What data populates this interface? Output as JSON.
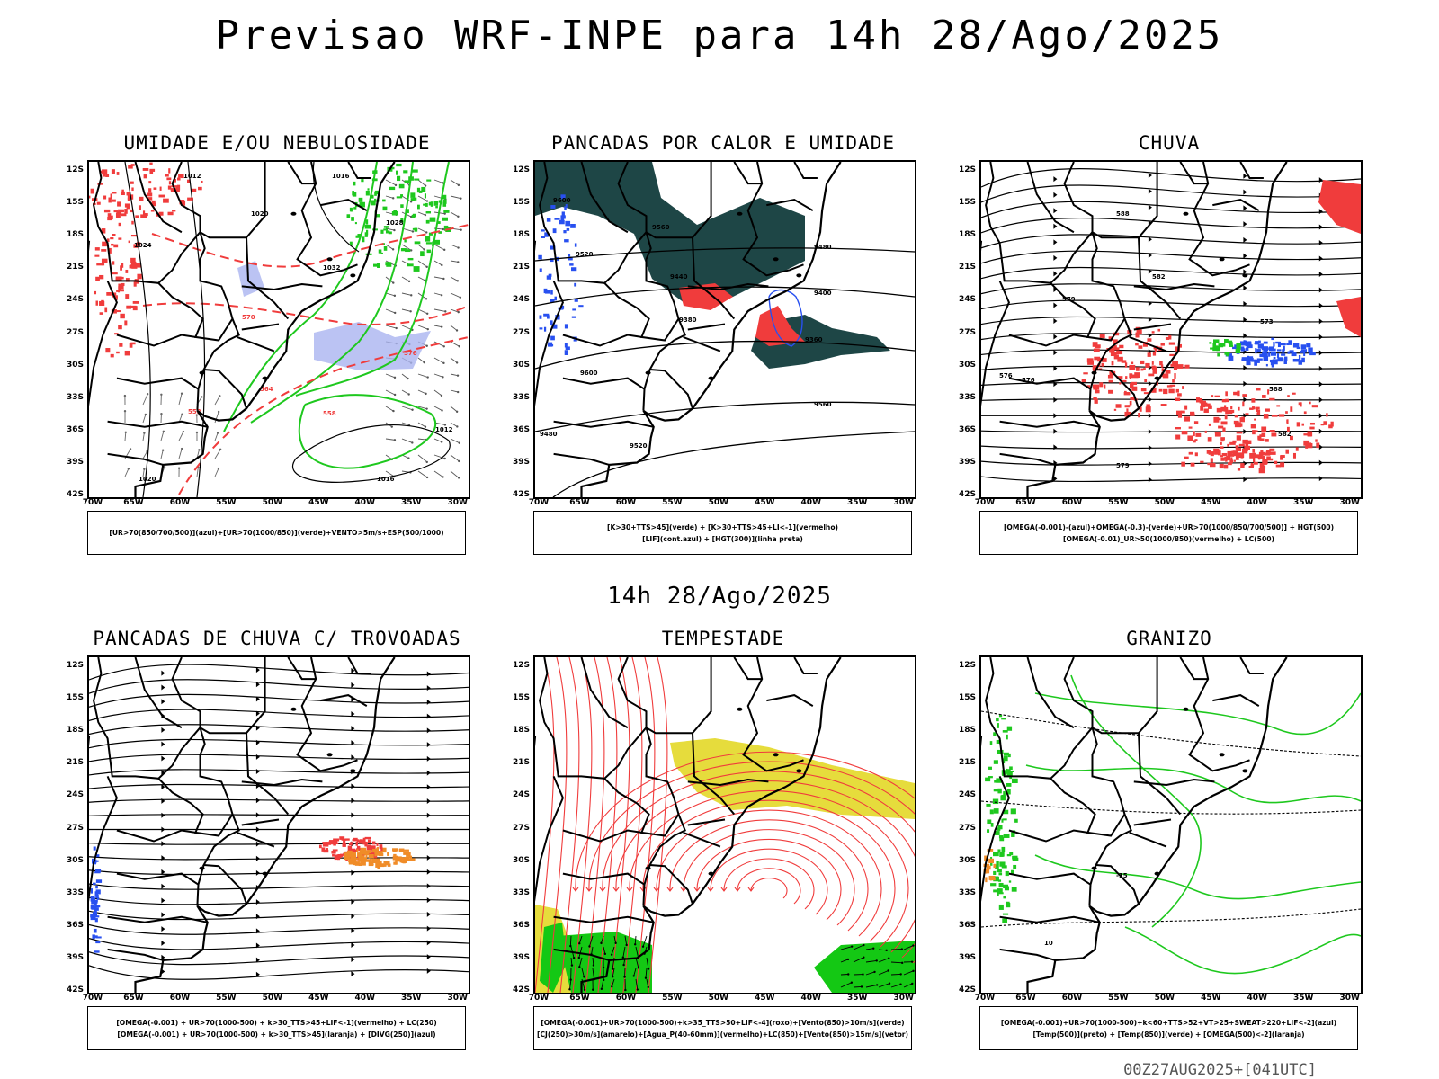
{
  "header": {
    "title": "Previsao WRF-INPE  para 14h 28/Ago/2025",
    "mid_label": "14h 28/Ago/2025",
    "footer": "00Z27AUG2025+[041UTC]"
  },
  "axes": {
    "lat_labels": [
      "12S",
      "15S",
      "18S",
      "21S",
      "24S",
      "27S",
      "30S",
      "33S",
      "36S",
      "39S",
      "42S"
    ],
    "lon_labels": [
      "70W",
      "65W",
      "60W",
      "55W",
      "50W",
      "45W",
      "40W",
      "35W",
      "30W"
    ]
  },
  "panels": [
    {
      "title": "UMIDADE E/OU NEBULOSIDADE",
      "legend": [
        "[UR>70(850/700/500)](azul)+[UR>70(1000/850)](verde)+VENTO>5m/s+ESP(500/1000)"
      ],
      "contour_labels": [
        "1012",
        "1016",
        "1020",
        "1024",
        "1028",
        "1032",
        "570",
        "576",
        "564",
        "552",
        "558"
      ]
    },
    {
      "title": "PANCADAS POR CALOR E UMIDADE",
      "legend": [
        "[K>30+TTS>45](verde)  +  [K>30+TTS>45+LI<-1](vermelho)",
        "[LIF](cont.azul)  +  [HGT(300)](linha preta)"
      ],
      "contour_labels": [
        "9600",
        "9560",
        "9520",
        "9480",
        "9440",
        "9400",
        "9380",
        "9360"
      ]
    },
    {
      "title": "CHUVA",
      "legend": [
        "[OMEGA(-0.001)-(azul)+OMEGA(-0.3)-(verde)+UR>70(1000/850/700/500)]  +  HGT(500)",
        "[OMEGA(-0.01)_UR>50(1000/850)(vermelho)  +  LC(500)"
      ],
      "contour_labels": [
        "588",
        "582",
        "579",
        "576",
        "573"
      ]
    },
    {
      "title": "PANCADAS DE CHUVA C/ TROVOADAS",
      "legend": [
        "[OMEGA(-0.001)  +  UR>70(1000-500)  +  k>30_TTS>45+LIF<-1](vermelho)  +  LC(250)",
        "[OMEGA(-0.001)  +  UR>70(1000-500)  +  k>30_TTS>45](laranja)  +  [DIVG(250)](azul)"
      ]
    },
    {
      "title": "TEMPESTADE",
      "legend": [
        "[OMEGA(-0.001)+UR>70(1000-500)+k>35_TTS>50+LIF<-4](roxo)+[Vento(850)>10m/s](verde)",
        "[CJ(250)>30m/s](amarelo)+[Agua_P(40-60mm)](vermelho)+LC(850)+[Vento(850)>15m/s](vetor)"
      ]
    },
    {
      "title": "GRANIZO",
      "legend": [
        "[OMEGA(-0.001)+UR>70(1000-500)+k<60+TTS>52+VT>25+SWEAT>220+LIF<-2](azul)",
        "[Temp(500)](preto)  +  [Temp(850)](verde)  +  [OMEGA(500)<-2](laranja)"
      ],
      "contour_labels": [
        "-15",
        "10"
      ]
    }
  ],
  "colors": {
    "humidity_blue": "#aab4f0",
    "green": "#1ec81e",
    "red": "#f03c3c",
    "dark_teal": "#1e4646",
    "blue": "#2850f0",
    "orange": "#f08c28",
    "yellow": "#e6dc3c",
    "bright_green": "#14c814"
  }
}
